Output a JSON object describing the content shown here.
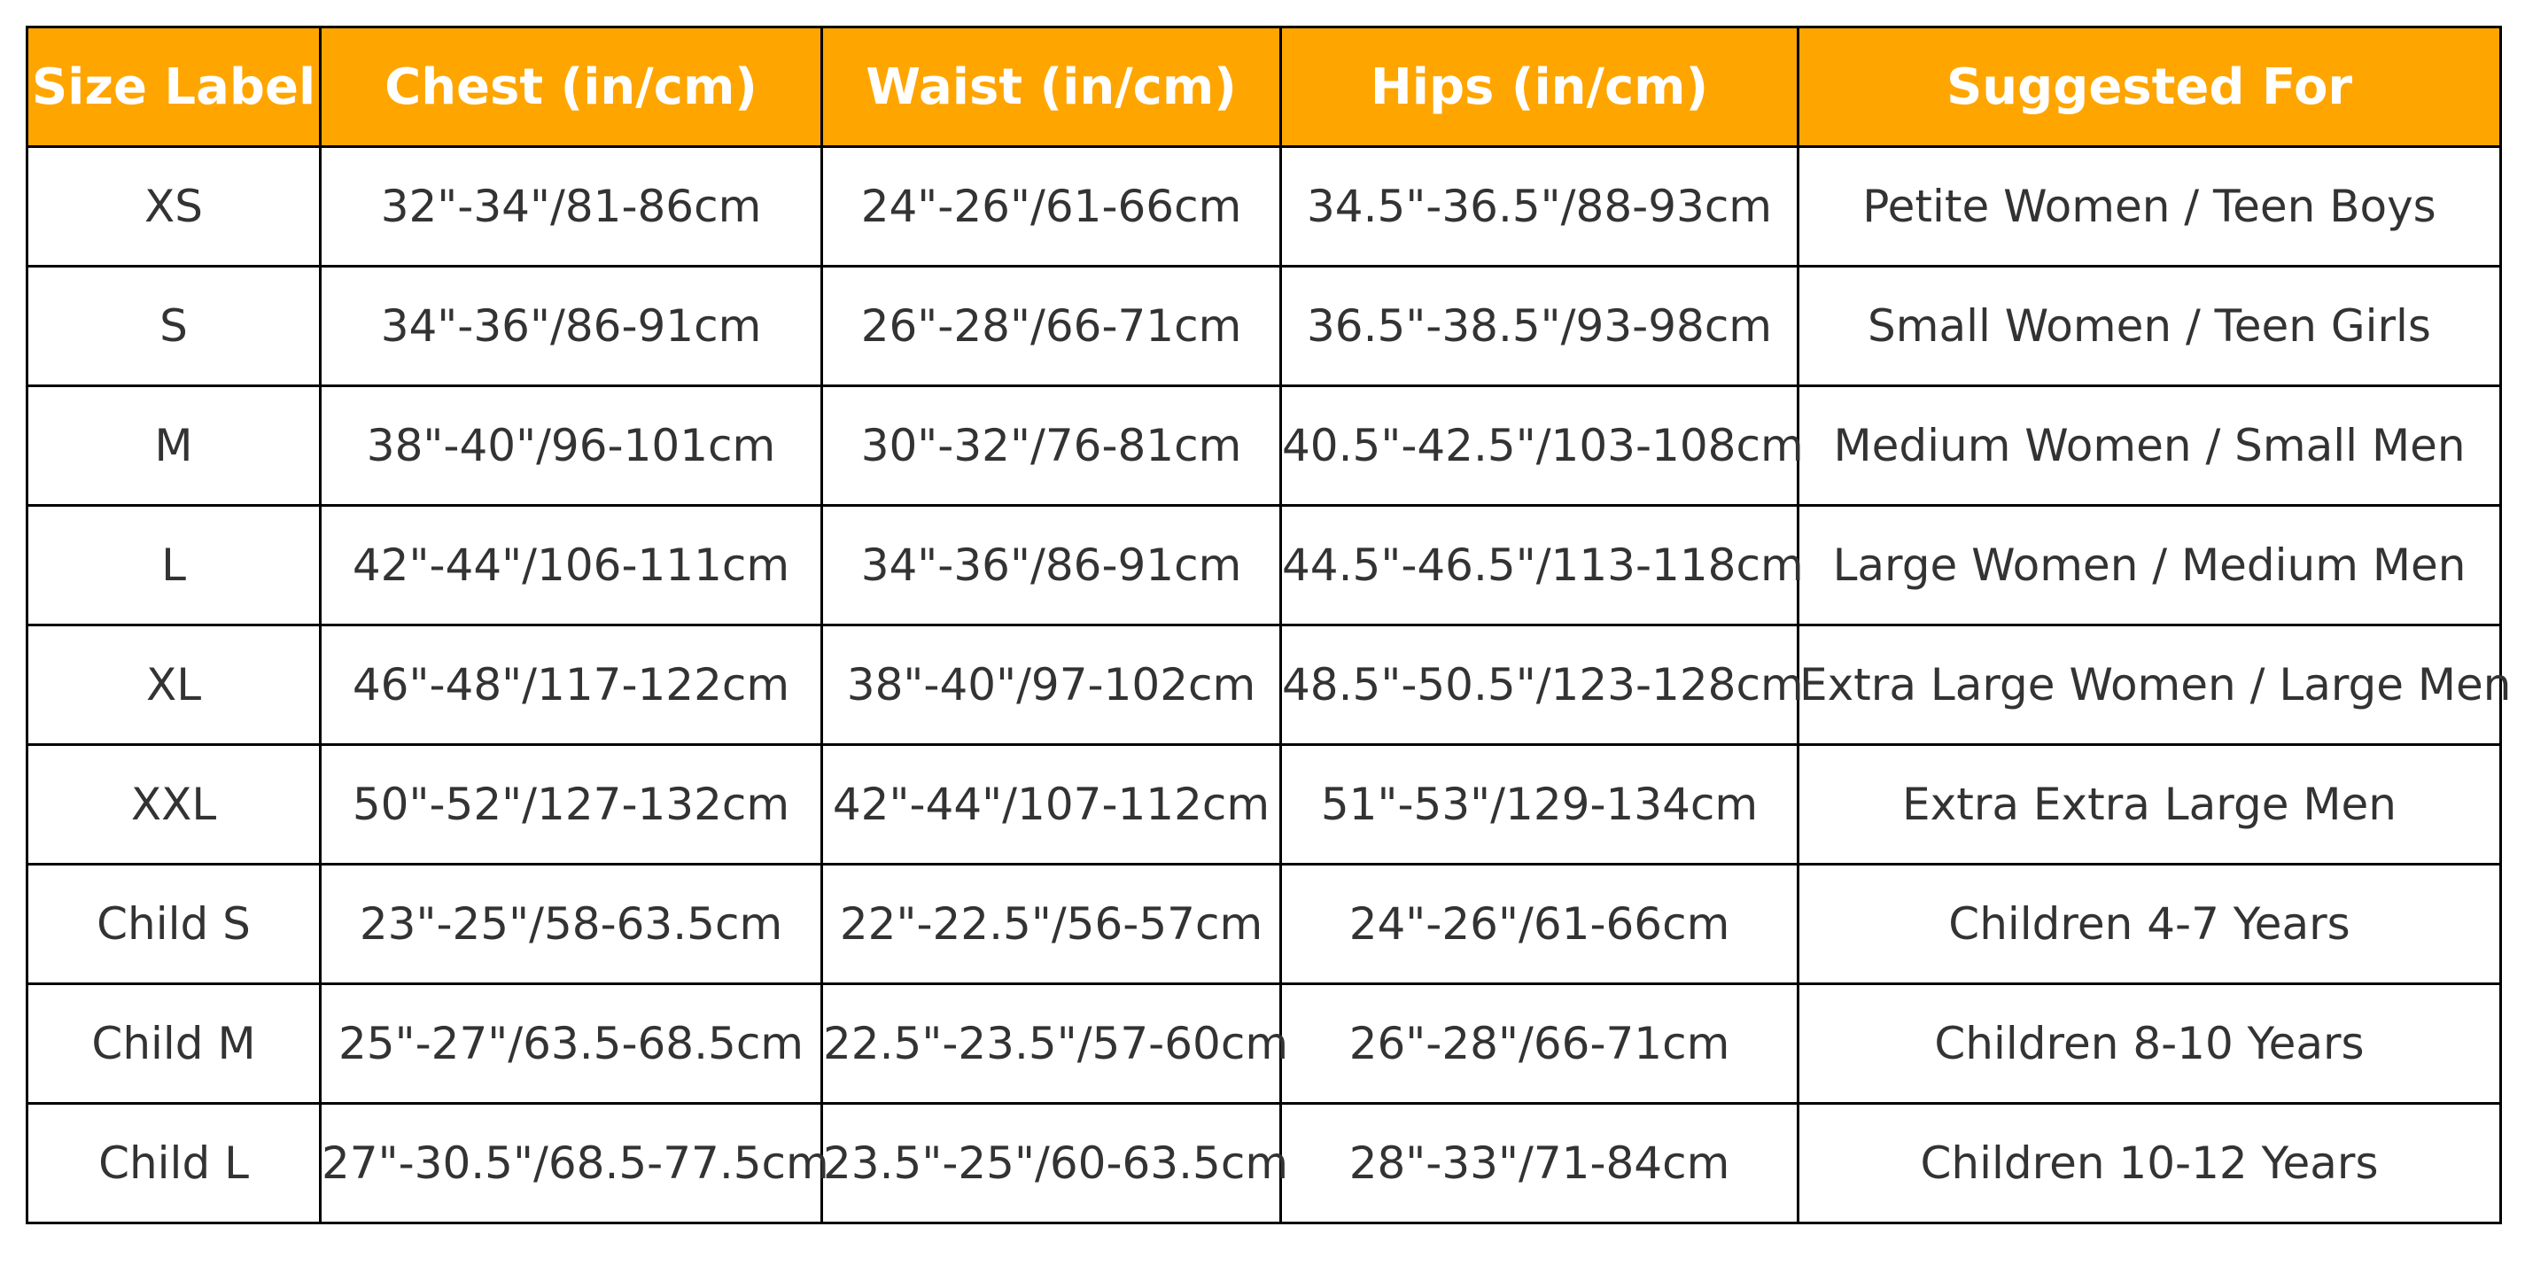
{
  "chart_data": {
    "type": "table",
    "columns": [
      "Size Label",
      "Chest (in/cm)",
      "Waist (in/cm)",
      "Hips (in/cm)",
      "Suggested For"
    ],
    "rows": [
      [
        "XS",
        "32\"-34\"/81-86cm",
        "24\"-26\"/61-66cm",
        "34.5\"-36.5\"/88-93cm",
        "Petite Women / Teen Boys"
      ],
      [
        "S",
        "34\"-36\"/86-91cm",
        "26\"-28\"/66-71cm",
        "36.5\"-38.5\"/93-98cm",
        "Small Women / Teen Girls"
      ],
      [
        "M",
        "38\"-40\"/96-101cm",
        "30\"-32\"/76-81cm",
        "40.5\"-42.5\"/103-108cm",
        "Medium Women / Small Men"
      ],
      [
        "L",
        "42\"-44\"/106-111cm",
        "34\"-36\"/86-91cm",
        "44.5\"-46.5\"/113-118cm",
        "Large Women / Medium Men"
      ],
      [
        "XL",
        "46\"-48\"/117-122cm",
        "38\"-40\"/97-102cm",
        "48.5\"-50.5\"/123-128cm",
        "Extra Large Women / Large Men"
      ],
      [
        "XXL",
        "50\"-52\"/127-132cm",
        "42\"-44\"/107-112cm",
        "51\"-53\"/129-134cm",
        "Extra Extra Large Men"
      ],
      [
        "Child S",
        "23\"-25\"/58-63.5cm",
        "22\"-22.5\"/56-57cm",
        "24\"-26\"/61-66cm",
        "Children 4-7 Years"
      ],
      [
        "Child M",
        "25\"-27\"/63.5-68.5cm",
        "22.5\"-23.5\"/57-60cm",
        "26\"-28\"/66-71cm",
        "Children 8-10 Years"
      ],
      [
        "Child L",
        "27\"-30.5\"/68.5-77.5cm",
        "23.5\"-25\"/60-63.5cm",
        "28\"-33\"/71-84cm",
        "Children 10-12 Years"
      ]
    ],
    "header_color": "#FFA500",
    "header_text_color": "#FFFFFF",
    "body_text_color": "#333333",
    "border_color": "#000000"
  }
}
